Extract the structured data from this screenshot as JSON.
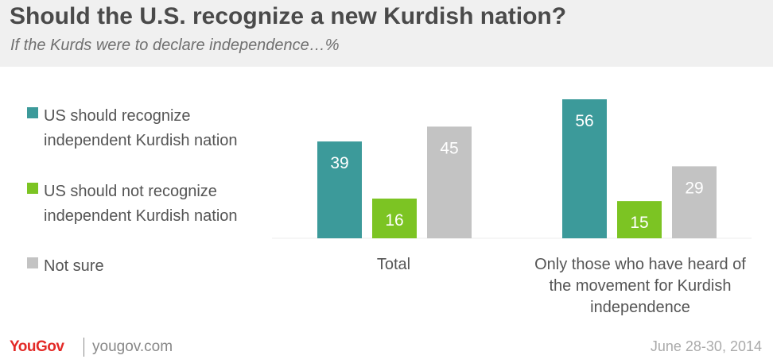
{
  "title": "Should the U.S. recognize a new Kurdish nation?",
  "subtitle": "If the Kurds were to declare independence…%",
  "legend": [
    {
      "lines": [
        "US should recognize",
        "independent Kurdish nation"
      ],
      "color": "#3c9a9a"
    },
    {
      "lines": [
        "US should not recognize",
        "independent Kurdish nation"
      ],
      "color": "#7cc423"
    },
    {
      "lines": [
        "Not sure"
      ],
      "color": "#c3c3c3"
    }
  ],
  "chart_data": {
    "type": "bar",
    "categories": [
      "Total",
      "Only those who have heard of the movement for Kurdish independence"
    ],
    "category_lines": [
      [
        "Total"
      ],
      [
        "Only those who have heard of",
        "the movement for Kurdish",
        "independence"
      ]
    ],
    "series": [
      {
        "name": "US should recognize independent Kurdish nation",
        "values": [
          39,
          56
        ],
        "color": "#3c9a9a"
      },
      {
        "name": "US should not recognize independent Kurdish nation",
        "values": [
          16,
          15
        ],
        "color": "#7cc423"
      },
      {
        "name": "Not sure",
        "values": [
          45,
          29
        ],
        "color": "#c3c3c3"
      }
    ],
    "data_labels": true,
    "legend_position": "left",
    "grid": false
  },
  "footer": {
    "logo_text": "YouGov",
    "site": "yougov.com",
    "date": "June 28-30, 2014"
  }
}
